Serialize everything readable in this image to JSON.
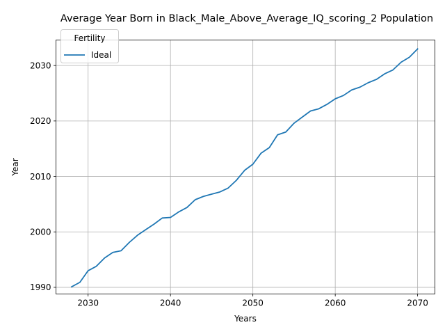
{
  "chart_data": {
    "type": "line",
    "title": "Average Year Born in Black_Male_Above_Average_IQ_scoring_2 Population",
    "xlabel": "Years",
    "ylabel": "Year",
    "xlim": [
      2026.1,
      2072.1
    ],
    "ylim": [
      1988.8,
      2034.6
    ],
    "xticks": [
      2030,
      2040,
      2050,
      2060,
      2070
    ],
    "yticks": [
      1990,
      2000,
      2010,
      2020,
      2030
    ],
    "grid": true,
    "legend": {
      "title": "Fertility",
      "position": "top-left"
    },
    "series": [
      {
        "name": "Ideal",
        "color": "#1f77b4",
        "x": [
          2028,
          2029,
          2030,
          2031,
          2032,
          2033,
          2034,
          2035,
          2036,
          2037,
          2038,
          2039,
          2040,
          2041,
          2042,
          2043,
          2044,
          2045,
          2046,
          2047,
          2048,
          2049,
          2050,
          2051,
          2052,
          2053,
          2054,
          2055,
          2056,
          2057,
          2058,
          2059,
          2060,
          2061,
          2062,
          2063,
          2064,
          2065,
          2066,
          2067,
          2068,
          2069,
          2070
        ],
        "y": [
          1990.1,
          1990.9,
          1993.0,
          1993.8,
          1995.3,
          1996.3,
          1996.6,
          1998.1,
          1999.4,
          2000.4,
          2001.4,
          2002.5,
          2002.6,
          2003.6,
          2004.4,
          2005.8,
          2006.4,
          2006.8,
          2007.2,
          2007.9,
          2009.3,
          2011.1,
          2012.2,
          2014.2,
          2015.2,
          2017.5,
          2018.0,
          2019.6,
          2020.7,
          2021.8,
          2022.2,
          2023.0,
          2024.0,
          2024.6,
          2025.6,
          2026.1,
          2026.9,
          2027.5,
          2028.5,
          2029.2,
          2030.6,
          2031.5,
          2033.0
        ]
      }
    ]
  }
}
